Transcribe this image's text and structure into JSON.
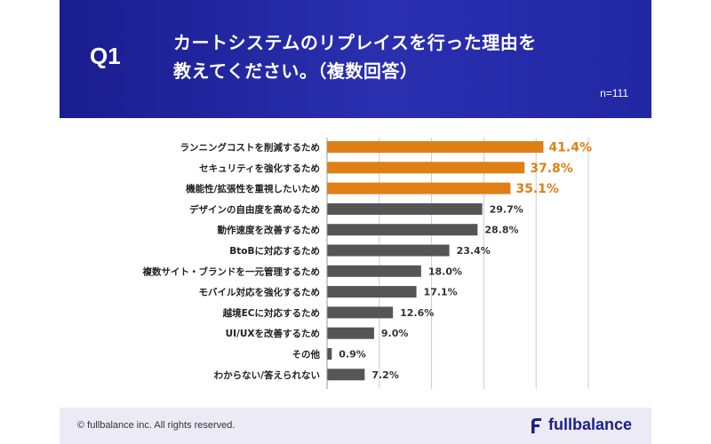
{
  "header": {
    "question_no": "Q1",
    "question_line1": "カートシステムのリプレイスを行った理由を",
    "question_line2": "教えてください。（複数回答）",
    "n_label": "n=111"
  },
  "chart_data": {
    "type": "bar",
    "orientation": "horizontal",
    "categories": [
      "ランニングコストを削減するため",
      "セキュリティを強化するため",
      "機能性/拡張性を重視したいため",
      "デザインの自由度を高めるため",
      "動作速度を改善するため",
      "BtoBに対応するため",
      "複数サイト・ブランドを一元管理するため",
      "モバイル対応を強化するため",
      "越境ECに対応するため",
      "UI/UXを改善するため",
      "その他",
      "わからない/答えられない"
    ],
    "values": [
      41.4,
      37.8,
      35.1,
      29.7,
      28.8,
      23.4,
      18.0,
      17.1,
      12.6,
      9.0,
      0.9,
      7.2
    ],
    "value_labels": [
      "41.4%",
      "37.8%",
      "35.1%",
      "29.7%",
      "28.8%",
      "23.4%",
      "18.0%",
      "17.1%",
      "12.6%",
      "9.0%",
      "0.9%",
      "7.2%"
    ],
    "highlight_count": 3,
    "xlim": [
      0,
      50
    ],
    "grid": true,
    "colors": {
      "highlight": "#e07f14",
      "normal": "#555555",
      "grid": "#cccccc"
    }
  },
  "footer": {
    "copyright": "© fullbalance inc. All rights reserved.",
    "logo_text": "fullbalance"
  }
}
